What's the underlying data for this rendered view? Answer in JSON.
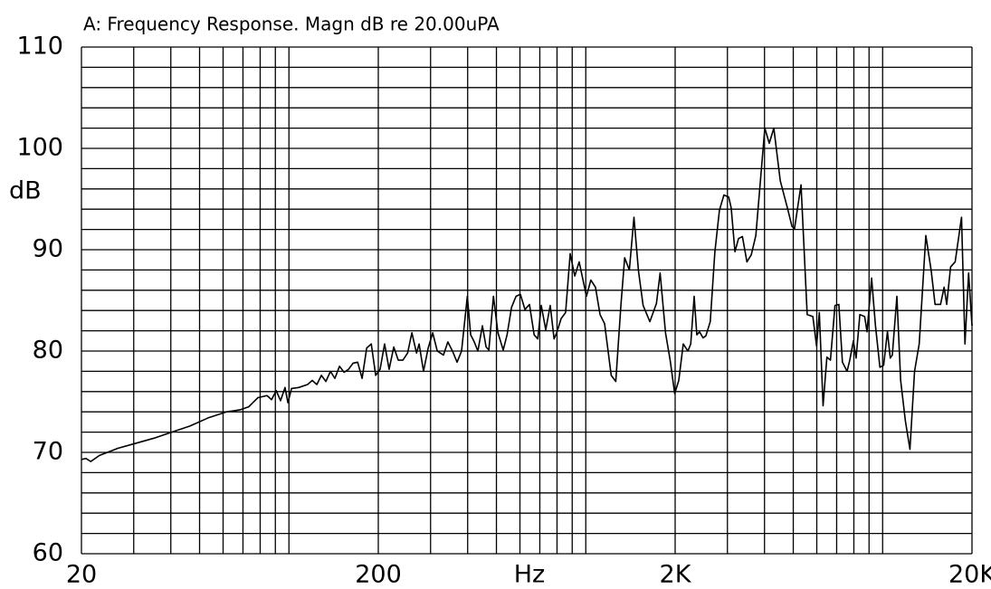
{
  "chart_data": {
    "type": "line",
    "title": "A: Frequency Response. Magn dB re 20.00uPA",
    "x_label": "Hz",
    "y_label": "dB",
    "xscale": "log",
    "color": "#000000",
    "xlim": [
      20,
      20000
    ],
    "ylim": [
      60,
      110
    ],
    "xticks": [
      20,
      200,
      {
        "value": 2000,
        "label": "2K"
      },
      {
        "value": 20000,
        "label": "20K"
      }
    ],
    "yticks": [
      60,
      70,
      80,
      90,
      100,
      110
    ],
    "xgrid": [
      20,
      30,
      40,
      50,
      60,
      70,
      80,
      90,
      100,
      200,
      300,
      400,
      500,
      600,
      700,
      800,
      900,
      1000,
      2000,
      3000,
      4000,
      5000,
      6000,
      7000,
      8000,
      9000,
      10000,
      20000
    ],
    "ygrid": [
      60,
      62,
      64,
      66,
      68,
      70,
      72,
      74,
      76,
      78,
      80,
      82,
      84,
      86,
      88,
      90,
      92,
      94,
      96,
      98,
      100,
      102,
      104,
      106,
      108,
      110
    ],
    "x": [
      20,
      20.7,
      21.5,
      23,
      26.5,
      30.5,
      35.1,
      40.3,
      46.4,
      53.4,
      61.6,
      68.4,
      73.2,
      78.6,
      84.4,
      87.4,
      90.6,
      93.7,
      97,
      99.2,
      102,
      107.8,
      115.6,
      119.8,
      124.2,
      128.6,
      133.2,
      138,
      142.8,
      148,
      153.4,
      158.8,
      164.4,
      170.4,
      176.4,
      182.8,
      189.4,
      196,
      202.8,
      210,
      217.5,
      225.5,
      233.5,
      242,
      251,
      259.5,
      269,
      274.5,
      284,
      294.5,
      305,
      316,
      331.5,
      343,
      355.5,
      368.5,
      381.5,
      399,
      409.5,
      421,
      433,
      448.5,
      461.5,
      471.5,
      488.5,
      506,
      527,
      543,
      562,
      582,
      602,
      624,
      646,
      670,
      689,
      708,
      733,
      759,
      782,
      798,
      826,
      855,
      886,
      918,
      950,
      1005,
      1040,
      1078,
      1117,
      1157,
      1218,
      1262,
      1313,
      1352,
      1402,
      1453,
      1505,
      1560,
      1644,
      1730,
      1780,
      1856,
      1924,
      1993,
      2057,
      2130,
      2208,
      2257,
      2318,
      2366,
      2416,
      2484,
      2538,
      2626,
      2722,
      2820,
      2920,
      3030,
      3090,
      3180,
      3270,
      3370,
      3490,
      3610,
      3740,
      3870,
      4010,
      4150,
      4300,
      4520,
      4780,
      4950,
      5050,
      5310,
      5570,
      5820,
      5990,
      6120,
      6300,
      6490,
      6670,
      6910,
      7120,
      7320,
      7590,
      7750,
      7970,
      8140,
      8380,
      8700,
      8860,
      9180,
      9460,
      9790,
      10080,
      10380,
      10610,
      10780,
      11170,
      11500,
      11930,
      12360,
      12810,
      13280,
      13980,
      14580,
      15020,
      15670,
      16110,
      16440,
      16940,
      17550,
      18440,
      18940,
      19480,
      20000
    ],
    "values": [
      69.3,
      69.4,
      69.1,
      69.7,
      70.4,
      70.9,
      71.4,
      72.0,
      72.6,
      73.4,
      74.0,
      74.2,
      74.5,
      75.4,
      75.6,
      75.2,
      76.1,
      75.1,
      76.4,
      74.9,
      76.3,
      76.4,
      76.7,
      77.1,
      76.7,
      77.6,
      77.0,
      78.0,
      77.3,
      78.5,
      77.9,
      78.2,
      78.8,
      78.9,
      77.3,
      80.3,
      80.7,
      77.6,
      78.2,
      80.7,
      78.2,
      80.4,
      79.1,
      79.1,
      79.8,
      81.8,
      79.8,
      80.7,
      78.0,
      80.3,
      81.8,
      80.0,
      79.6,
      80.9,
      80.0,
      78.9,
      80.0,
      85.4,
      81.6,
      80.9,
      80.0,
      82.5,
      80.4,
      80.1,
      85.4,
      81.8,
      80.1,
      81.6,
      84.3,
      85.4,
      85.6,
      84.1,
      84.6,
      81.6,
      81.2,
      84.5,
      82.1,
      84.5,
      81.2,
      81.8,
      83.2,
      83.8,
      89.6,
      87.4,
      88.8,
      85.4,
      87.0,
      86.3,
      83.6,
      82.7,
      77.6,
      77.0,
      84.5,
      89.2,
      88.0,
      93.2,
      87.9,
      84.5,
      82.9,
      84.7,
      87.7,
      81.8,
      79.1,
      75.8,
      77.1,
      80.7,
      80.0,
      80.7,
      85.4,
      81.6,
      81.9,
      81.3,
      81.5,
      82.9,
      89.8,
      93.9,
      95.4,
      95.2,
      94.1,
      89.8,
      91.1,
      91.3,
      88.8,
      89.5,
      91.4,
      96.6,
      102.0,
      100.5,
      102.0,
      96.8,
      94.1,
      92.3,
      92.1,
      96.4,
      83.6,
      83.4,
      80.5,
      83.8,
      74.6,
      79.4,
      79.1,
      84.5,
      84.6,
      78.9,
      78.0,
      79.1,
      81.0,
      79.3,
      83.6,
      83.4,
      81.9,
      87.2,
      82.5,
      78.4,
      78.6,
      81.9,
      79.3,
      79.6,
      85.4,
      77.1,
      73.1,
      70.3,
      78.0,
      80.7,
      91.4,
      87.9,
      84.6,
      84.6,
      86.3,
      84.6,
      88.3,
      88.8,
      93.2,
      80.7,
      87.7,
      82.5
    ]
  }
}
